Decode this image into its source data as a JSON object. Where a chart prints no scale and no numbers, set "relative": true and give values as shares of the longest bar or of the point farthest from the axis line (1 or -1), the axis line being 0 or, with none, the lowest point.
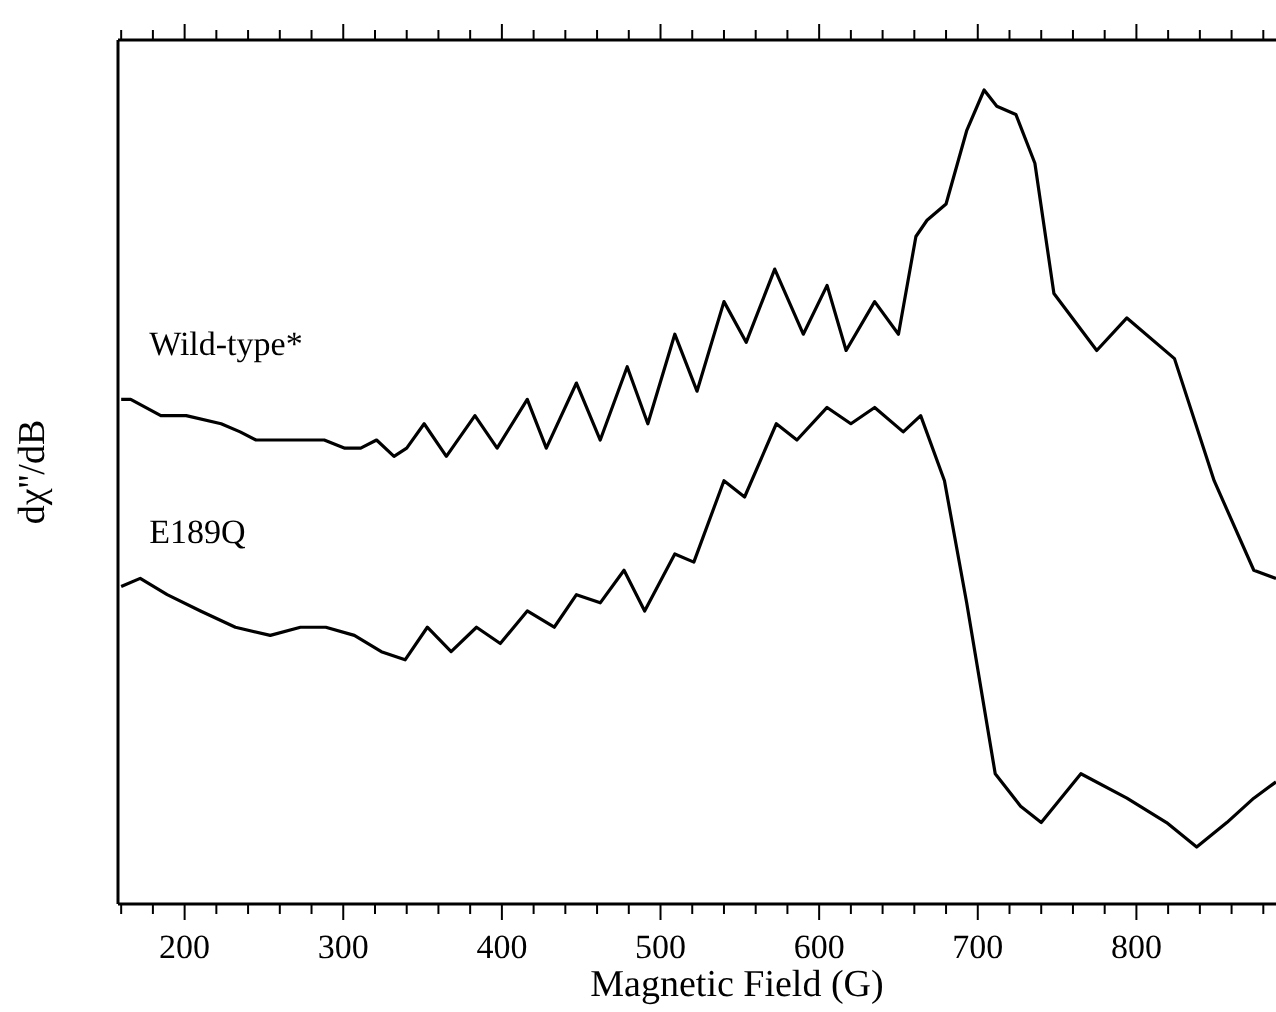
{
  "chart_data": {
    "type": "line",
    "xlabel": "Magnetic Field (G)",
    "ylabel": "dχ''/dB",
    "relative": true,
    "xlim": [
      158,
      888
    ],
    "xticks": [
      {
        "value": 160,
        "label": null
      },
      {
        "value": 180,
        "label": null
      },
      200,
      {
        "value": 220,
        "label": null
      },
      {
        "value": 240,
        "label": null
      },
      {
        "value": 260,
        "label": null
      },
      {
        "value": 280,
        "label": null
      },
      300,
      {
        "value": 320,
        "label": null
      },
      {
        "value": 340,
        "label": null
      },
      {
        "value": 360,
        "label": null
      },
      {
        "value": 380,
        "label": null
      },
      400,
      {
        "value": 420,
        "label": null
      },
      {
        "value": 440,
        "label": null
      },
      {
        "value": 460,
        "label": null
      },
      {
        "value": 480,
        "label": null
      },
      500,
      {
        "value": 520,
        "label": null
      },
      {
        "value": 540,
        "label": null
      },
      {
        "value": 560,
        "label": null
      },
      {
        "value": 580,
        "label": null
      },
      600,
      {
        "value": 620,
        "label": null
      },
      {
        "value": 640,
        "label": null
      },
      {
        "value": 660,
        "label": null
      },
      {
        "value": 680,
        "label": null
      },
      700,
      {
        "value": 720,
        "label": null
      },
      {
        "value": 740,
        "label": null
      },
      {
        "value": 760,
        "label": null
      },
      {
        "value": 780,
        "label": null
      },
      800,
      {
        "value": 820,
        "label": null
      },
      {
        "value": 840,
        "label": null
      },
      {
        "value": 860,
        "label": null
      },
      {
        "value": 880,
        "label": null
      }
    ],
    "series": [
      {
        "name": "Wild-type*",
        "color": "#000000",
        "x": [
          160,
          166,
          185,
          201,
          223,
          235,
          245,
          258,
          273,
          288,
          301,
          311,
          321,
          332,
          340,
          351,
          365,
          383,
          397,
          416,
          428,
          447,
          462,
          479,
          492,
          509,
          523,
          540,
          554,
          572,
          590,
          605,
          617,
          635,
          650,
          661,
          668,
          680,
          693,
          704,
          712,
          724,
          736,
          748,
          775,
          794,
          824,
          849,
          874,
          888
        ],
        "values": [
          0.62,
          0.62,
          0.6,
          0.6,
          0.59,
          0.58,
          0.57,
          0.57,
          0.57,
          0.57,
          0.56,
          0.56,
          0.57,
          0.55,
          0.56,
          0.59,
          0.55,
          0.6,
          0.56,
          0.62,
          0.56,
          0.64,
          0.57,
          0.66,
          0.59,
          0.7,
          0.63,
          0.74,
          0.69,
          0.78,
          0.7,
          0.76,
          0.68,
          0.74,
          0.7,
          0.82,
          0.84,
          0.86,
          0.95,
          1.0,
          0.98,
          0.97,
          0.91,
          0.75,
          0.68,
          0.72,
          0.67,
          0.52,
          0.41,
          0.4
        ]
      },
      {
        "name": "E189Q",
        "color": "#000000",
        "x": [
          160,
          172,
          189,
          210,
          232,
          254,
          273,
          289,
          307,
          324,
          339,
          353,
          368,
          384,
          399,
          416,
          433,
          447,
          462,
          477,
          490,
          509,
          521,
          540,
          553,
          573,
          586,
          605,
          620,
          635,
          653,
          664,
          679,
          693,
          711,
          727,
          740,
          765,
          794,
          819,
          838,
          857,
          874,
          888
        ],
        "values": [
          0.39,
          0.4,
          0.38,
          0.36,
          0.34,
          0.33,
          0.34,
          0.34,
          0.33,
          0.31,
          0.3,
          0.34,
          0.31,
          0.34,
          0.32,
          0.36,
          0.34,
          0.38,
          0.37,
          0.41,
          0.36,
          0.43,
          0.42,
          0.52,
          0.5,
          0.59,
          0.57,
          0.61,
          0.59,
          0.61,
          0.58,
          0.6,
          0.52,
          0.37,
          0.16,
          0.12,
          0.1,
          0.16,
          0.13,
          0.1,
          0.07,
          0.1,
          0.13,
          0.15
        ]
      }
    ]
  }
}
